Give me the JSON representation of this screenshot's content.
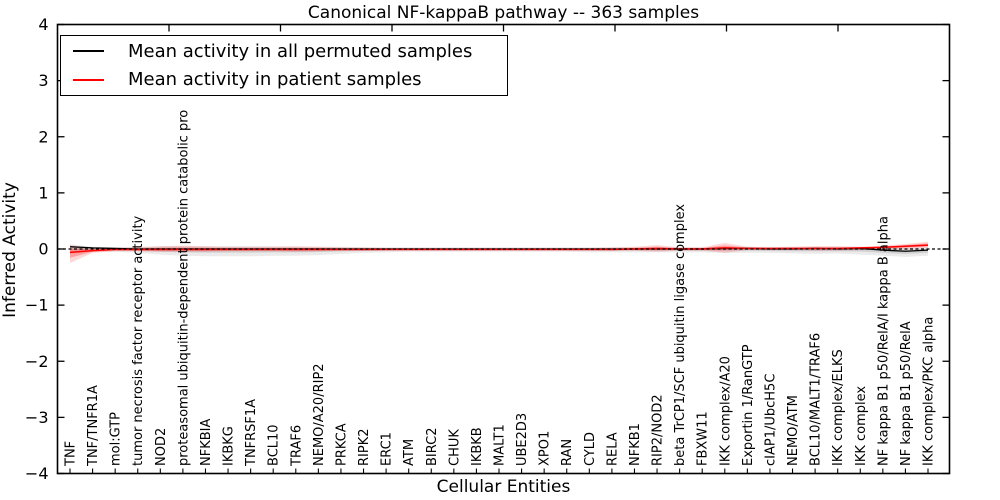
{
  "chart_data": {
    "type": "line",
    "title": "Canonical NF-kappaB pathway -- 363 samples",
    "xlabel": "Cellular Entities",
    "ylabel": "Inferred Activity",
    "ylim": [
      -4,
      4
    ],
    "grid": false,
    "legend_position": "upper left",
    "y_ticks": [
      {
        "value": 4,
        "label": "4"
      },
      {
        "value": 3,
        "label": "3"
      },
      {
        "value": 2,
        "label": "2"
      },
      {
        "value": 1,
        "label": "1"
      },
      {
        "value": 0,
        "label": "0"
      },
      {
        "value": -1,
        "label": "−1"
      },
      {
        "value": -2,
        "label": "−2"
      },
      {
        "value": -3,
        "label": "−3"
      },
      {
        "value": -4,
        "label": "−4"
      }
    ],
    "categories": [
      "TNF",
      "TNF/TNFR1A",
      "mol:GTP",
      "tumor necrosis factor receptor activity",
      "NOD2",
      "proteasomal ubiquitin-dependent protein catabolic pro",
      "NFKBIA",
      "IKBKG",
      "TNFRSF1A",
      "BCL10",
      "TRAF6",
      "NEMO/A20/RIP2",
      "PRKCA",
      "RIPK2",
      "ERC1",
      "ATM",
      "BIRC2",
      "CHUK",
      "IKBKB",
      "MALT1",
      "UBE2D3",
      "XPO1",
      "RAN",
      "CYLD",
      "RELA",
      "NFKB1",
      "RIP2/NOD2",
      "beta TrCP1/SCF ubiquitin ligase complex",
      "FBXW11",
      "IKK complex/A20",
      "Exportin 1/RanGTP",
      "cIAP1/UbcH5C",
      "NEMO/ATM",
      "BCL10/MALT1/TRAF6",
      "IKK complex/ELKS",
      "IKK complex",
      "NF kappa B1 p50/RelA/I kappa B alpha",
      "NF kappa B1 p50/RelA",
      "IKK complex/PKC alpha"
    ],
    "zero_line": {
      "y": 0,
      "style": "dashed",
      "color": "#000000"
    },
    "band_inner_fraction": 0.5,
    "series": [
      {
        "name": "Mean activity in all permuted samples",
        "color": "#000000",
        "band_outer_color": "rgba(0,0,0,0.08)",
        "band_inner_color": "rgba(0,0,0,0.11)",
        "values": [
          0.04,
          0.02,
          0.01,
          0.0,
          0.0,
          0.0,
          0.0,
          0.0,
          0.0,
          0.0,
          0.0,
          0.0,
          0.0,
          0.0,
          0.0,
          0.0,
          0.0,
          0.0,
          0.0,
          0.0,
          0.0,
          0.0,
          0.0,
          0.0,
          0.0,
          0.0,
          0.0,
          0.0,
          0.0,
          0.01,
          0.01,
          0.0,
          0.0,
          0.01,
          0.0,
          0.01,
          -0.02,
          -0.04,
          -0.02
        ],
        "band_upper": [
          0.08,
          0.04,
          0.03,
          0.04,
          0.05,
          0.05,
          0.05,
          0.05,
          0.05,
          0.05,
          0.04,
          0.04,
          0.04,
          0.03,
          0.03,
          0.03,
          0.03,
          0.03,
          0.03,
          0.03,
          0.03,
          0.03,
          0.03,
          0.03,
          0.03,
          0.03,
          0.03,
          0.03,
          0.03,
          0.04,
          0.04,
          0.04,
          0.04,
          0.04,
          0.04,
          0.04,
          0.03,
          0.02,
          0.03
        ],
        "band_lower": [
          -0.08,
          -0.05,
          -0.05,
          -0.07,
          -0.1,
          -0.12,
          -0.13,
          -0.13,
          -0.13,
          -0.12,
          -0.12,
          -0.11,
          -0.09,
          -0.07,
          -0.06,
          -0.05,
          -0.05,
          -0.05,
          -0.05,
          -0.05,
          -0.05,
          -0.05,
          -0.05,
          -0.06,
          -0.06,
          -0.06,
          -0.06,
          -0.06,
          -0.06,
          -0.07,
          -0.07,
          -0.07,
          -0.08,
          -0.09,
          -0.08,
          -0.1,
          -0.12,
          -0.14,
          -0.12
        ]
      },
      {
        "name": "Mean activity in patient samples",
        "color": "#ff0000",
        "band_outer_color": "rgba(255,0,0,0.16)",
        "band_inner_color": "rgba(255,0,0,0.25)",
        "values": [
          -0.06,
          -0.03,
          -0.01,
          -0.01,
          -0.01,
          -0.01,
          -0.01,
          -0.01,
          -0.01,
          -0.01,
          -0.01,
          -0.01,
          -0.01,
          -0.01,
          -0.01,
          -0.01,
          -0.01,
          -0.01,
          -0.01,
          -0.01,
          -0.01,
          -0.01,
          -0.01,
          -0.01,
          -0.01,
          0.0,
          0.01,
          0.0,
          0.0,
          0.02,
          0.01,
          0.01,
          0.01,
          0.01,
          0.01,
          0.02,
          0.03,
          0.05,
          0.07
        ],
        "band_upper": [
          0.07,
          0.02,
          0.02,
          0.03,
          0.05,
          0.06,
          0.05,
          0.04,
          0.04,
          0.04,
          0.05,
          0.04,
          0.03,
          0.03,
          0.02,
          0.02,
          0.02,
          0.02,
          0.02,
          0.02,
          0.02,
          0.02,
          0.02,
          0.02,
          0.03,
          0.04,
          0.07,
          0.03,
          0.03,
          0.11,
          0.04,
          0.03,
          0.04,
          0.05,
          0.05,
          0.04,
          0.06,
          0.09,
          0.13
        ],
        "band_lower": [
          -0.25,
          -0.07,
          -0.04,
          -0.04,
          -0.05,
          -0.05,
          -0.05,
          -0.04,
          -0.04,
          -0.04,
          -0.05,
          -0.04,
          -0.03,
          -0.03,
          -0.02,
          -0.02,
          -0.02,
          -0.02,
          -0.02,
          -0.02,
          -0.02,
          -0.02,
          -0.02,
          -0.02,
          -0.03,
          -0.03,
          -0.05,
          -0.03,
          -0.03,
          -0.07,
          -0.02,
          -0.02,
          -0.02,
          -0.03,
          -0.03,
          -0.02,
          -0.01,
          0.0,
          0.02
        ]
      }
    ]
  },
  "legend": {
    "items": [
      {
        "label": "Mean activity in all permuted samples",
        "color": "#000000"
      },
      {
        "label": "Mean activity in patient samples",
        "color": "#ff0000"
      }
    ]
  }
}
